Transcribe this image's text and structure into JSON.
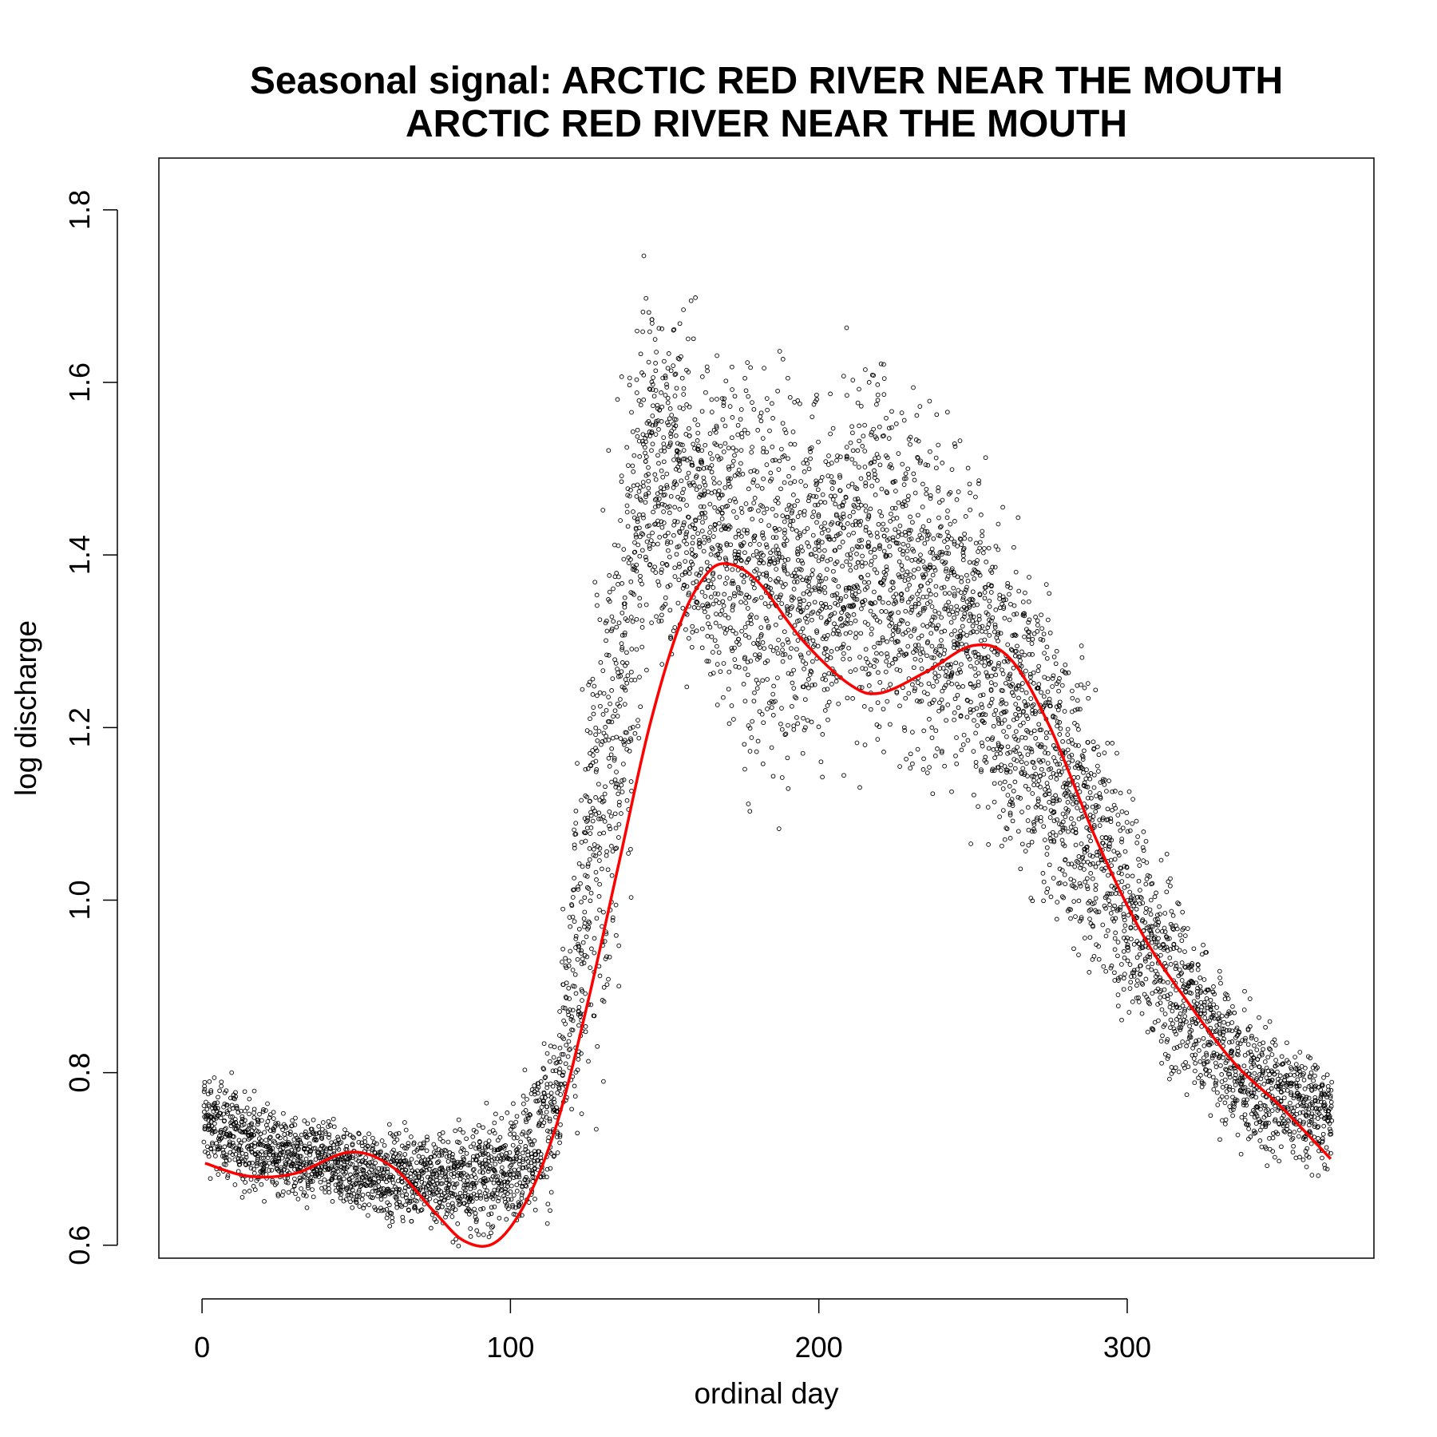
{
  "chart_data": {
    "type": "scatter",
    "title": "Seasonal signal: ARCTIC RED RIVER NEAR THE MOUTH",
    "subtitle": "ARCTIC RED RIVER NEAR THE MOUTH",
    "xlabel": "ordinal day",
    "ylabel": "log discharge",
    "xlim": [
      -14,
      380
    ],
    "ylim": [
      0.585,
      1.86
    ],
    "xticks": [
      0,
      100,
      200,
      300
    ],
    "yticks": [
      0.6,
      0.8,
      1.0,
      1.2,
      1.4,
      1.6,
      1.8
    ],
    "grid": false,
    "colors": {
      "points": "#000000",
      "fit": "#ff0000",
      "background": "#ffffff"
    },
    "points_description": {
      "x_range": [
        1,
        366
      ],
      "envelope": [
        {
          "x": 1,
          "lower": 0.66,
          "upper": 0.83
        },
        {
          "x": 20,
          "lower": 0.64,
          "upper": 0.78
        },
        {
          "x": 50,
          "lower": 0.62,
          "upper": 0.75
        },
        {
          "x": 80,
          "lower": 0.59,
          "upper": 0.76
        },
        {
          "x": 100,
          "lower": 0.59,
          "upper": 0.78
        },
        {
          "x": 115,
          "lower": 0.62,
          "upper": 0.9
        },
        {
          "x": 125,
          "lower": 0.66,
          "upper": 1.4
        },
        {
          "x": 135,
          "lower": 0.78,
          "upper": 1.68
        },
        {
          "x": 145,
          "lower": 1.2,
          "upper": 1.84
        },
        {
          "x": 160,
          "lower": 1.18,
          "upper": 1.72
        },
        {
          "x": 180,
          "lower": 1.05,
          "upper": 1.7
        },
        {
          "x": 200,
          "lower": 1.1,
          "upper": 1.65
        },
        {
          "x": 215,
          "lower": 1.1,
          "upper": 1.73
        },
        {
          "x": 240,
          "lower": 1.08,
          "upper": 1.62
        },
        {
          "x": 260,
          "lower": 1.0,
          "upper": 1.5
        },
        {
          "x": 280,
          "lower": 0.9,
          "upper": 1.38
        },
        {
          "x": 300,
          "lower": 0.8,
          "upper": 1.2
        },
        {
          "x": 320,
          "lower": 0.74,
          "upper": 1.0
        },
        {
          "x": 340,
          "lower": 0.68,
          "upper": 0.9
        },
        {
          "x": 366,
          "lower": 0.66,
          "upper": 0.83
        }
      ]
    },
    "fit_line": {
      "name": "",
      "x": [
        1,
        15,
        30,
        48,
        62,
        75,
        85,
        95,
        105,
        115,
        125,
        135,
        145,
        155,
        163,
        170,
        180,
        195,
        210,
        220,
        235,
        250,
        262,
        275,
        290,
        305,
        320,
        335,
        350,
        366
      ],
      "y": [
        0.695,
        0.68,
        0.683,
        0.708,
        0.69,
        0.64,
        0.605,
        0.603,
        0.65,
        0.74,
        0.88,
        1.04,
        1.2,
        1.32,
        1.375,
        1.39,
        1.37,
        1.3,
        1.25,
        1.24,
        1.265,
        1.295,
        1.28,
        1.2,
        1.07,
        0.96,
        0.88,
        0.81,
        0.76,
        0.7
      ]
    }
  }
}
